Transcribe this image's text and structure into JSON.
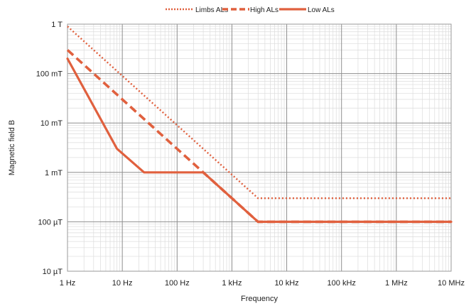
{
  "chart_data": {
    "type": "line",
    "xlabel": "Frequency",
    "ylabel": "Magnetic field B",
    "xscale": "log",
    "yscale": "log",
    "xlim": [
      1,
      10000000
    ],
    "ylim": [
      1e-05,
      1
    ],
    "grid": true,
    "legend_position": "top-center",
    "x_ticks": [
      {
        "value": 1,
        "label": "1 Hz"
      },
      {
        "value": 10,
        "label": "10 Hz"
      },
      {
        "value": 100,
        "label": "100 Hz"
      },
      {
        "value": 1000,
        "label": "1 kHz"
      },
      {
        "value": 10000,
        "label": "10 kHz"
      },
      {
        "value": 100000,
        "label": "100 kHz"
      },
      {
        "value": 1000000,
        "label": "1 MHz"
      },
      {
        "value": 10000000,
        "label": "10 MHz"
      }
    ],
    "y_ticks": [
      {
        "value": 1,
        "label": "1 T"
      },
      {
        "value": 0.1,
        "label": "100 mT"
      },
      {
        "value": 0.01,
        "label": "10 mT"
      },
      {
        "value": 0.001,
        "label": "1 mT"
      },
      {
        "value": 0.0001,
        "label": "100 µT"
      },
      {
        "value": 1e-05,
        "label": "10 µT"
      }
    ],
    "series": [
      {
        "name": "Limbs ALs",
        "style": "dotted",
        "color": "#e0603e",
        "points": [
          [
            1,
            0.9
          ],
          [
            3000,
            0.0003
          ],
          [
            10000000,
            0.0003
          ]
        ]
      },
      {
        "name": "High ALs",
        "style": "dashed",
        "color": "#e0603e",
        "points": [
          [
            1,
            0.3
          ],
          [
            3000,
            0.0001
          ],
          [
            10000000,
            0.0001
          ]
        ]
      },
      {
        "name": "Low ALs",
        "style": "solid",
        "color": "#e0603e",
        "points": [
          [
            1,
            0.2
          ],
          [
            8,
            0.003
          ],
          [
            25,
            0.001
          ],
          [
            300,
            0.001
          ],
          [
            3000,
            0.0001
          ],
          [
            10000000,
            0.0001
          ]
        ]
      }
    ]
  }
}
